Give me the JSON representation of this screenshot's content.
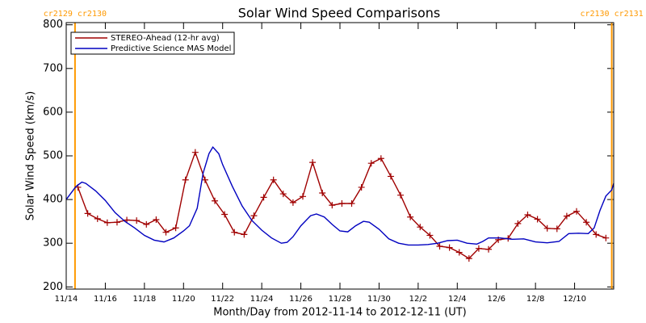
{
  "chart_data": {
    "type": "line",
    "title": "Solar Wind Speed Comparisons",
    "xlabel": "Month/Day from 2012-11-14 to 2012-12-11 (UT)",
    "ylabel": "Solar Wind Speed (km/s)",
    "xlim": [
      0,
      28
    ],
    "ylim": [
      195,
      805
    ],
    "yticks": [
      200,
      300,
      400,
      500,
      600,
      700,
      800
    ],
    "xticks": [
      {
        "value": 0,
        "label": "11/14"
      },
      {
        "value": 2,
        "label": "11/16"
      },
      {
        "value": 4,
        "label": "11/18"
      },
      {
        "value": 6,
        "label": "11/20"
      },
      {
        "value": 8,
        "label": "11/22"
      },
      {
        "value": 10,
        "label": "11/24"
      },
      {
        "value": 12,
        "label": "11/26"
      },
      {
        "value": 14,
        "label": "11/28"
      },
      {
        "value": 16,
        "label": "11/30"
      },
      {
        "value": 18,
        "label": "12/2"
      },
      {
        "value": 20,
        "label": "12/4"
      },
      {
        "value": 22,
        "label": "12/6"
      },
      {
        "value": 24,
        "label": "12/8"
      },
      {
        "value": 26,
        "label": "12/10"
      }
    ],
    "legend": "upper left",
    "annotations": [
      {
        "text": "cr2129 cr2130",
        "x": 0.45,
        "color": "#ff9900"
      },
      {
        "text": "cr2130 cr2131",
        "x": 27.9,
        "color": "#ff9900"
      }
    ],
    "series": [
      {
        "name": "STEREO-Ahead (12-hr avg)",
        "color": "#a00000",
        "markers": true,
        "x": [
          0.6,
          1.1,
          1.6,
          2.1,
          2.6,
          3.1,
          3.6,
          4.1,
          4.6,
          5.1,
          5.6,
          6.1,
          6.6,
          7.1,
          7.6,
          8.1,
          8.6,
          9.1,
          9.6,
          10.1,
          10.6,
          11.1,
          11.6,
          12.1,
          12.6,
          13.1,
          13.6,
          14.1,
          14.6,
          15.1,
          15.6,
          16.1,
          16.6,
          17.1,
          17.6,
          18.1,
          18.6,
          19.1,
          19.6,
          20.1,
          20.6,
          21.1,
          21.6,
          22.1,
          22.6,
          23.1,
          23.6,
          24.1,
          24.6,
          25.1,
          25.6,
          26.1,
          26.6,
          27.1,
          27.6
        ],
        "values": [
          428,
          368,
          356,
          347,
          348,
          353,
          352,
          343,
          354,
          325,
          335,
          445,
          508,
          445,
          397,
          366,
          325,
          320,
          363,
          405,
          445,
          413,
          393,
          407,
          485,
          415,
          387,
          391,
          391,
          428,
          483,
          494,
          453,
          410,
          360,
          337,
          318,
          293,
          290,
          279,
          265,
          288,
          286,
          308,
          311,
          345,
          365,
          355,
          334,
          333,
          362,
          373,
          348,
          320,
          312
        ]
      },
      {
        "name": "Predictive Science MAS Model",
        "color": "#0000c0",
        "markers": false,
        "x": [
          0,
          0.5,
          0.8,
          1,
          1.5,
          2,
          2.5,
          3,
          3.5,
          4,
          4.5,
          5,
          5.5,
          6,
          6.3,
          6.7,
          7,
          7.3,
          7.5,
          7.8,
          8,
          8.5,
          9,
          9.5,
          10,
          10.5,
          11,
          11.3,
          11.6,
          12,
          12.5,
          12.8,
          13.2,
          13.6,
          14,
          14.4,
          14.8,
          15.2,
          15.5,
          16,
          16.5,
          17,
          17.5,
          18,
          18.5,
          19,
          19.5,
          20,
          20.5,
          21,
          21.3,
          21.6,
          22.2,
          22.8,
          23.4,
          24,
          24.6,
          25.2,
          25.7,
          26.2,
          26.7,
          27,
          27.3,
          27.6,
          27.9,
          28
        ],
        "values": [
          400,
          430,
          440,
          437,
          420,
          398,
          370,
          350,
          335,
          318,
          307,
          303,
          312,
          328,
          340,
          380,
          460,
          505,
          520,
          505,
          480,
          430,
          385,
          352,
          330,
          312,
          300,
          302,
          315,
          340,
          363,
          367,
          360,
          343,
          328,
          326,
          340,
          350,
          348,
          332,
          310,
          300,
          296,
          296,
          297,
          300,
          306,
          307,
          300,
          298,
          304,
          312,
          312,
          309,
          310,
          303,
          301,
          304,
          322,
          323,
          322,
          335,
          375,
          408,
          422,
          437
        ]
      }
    ]
  }
}
